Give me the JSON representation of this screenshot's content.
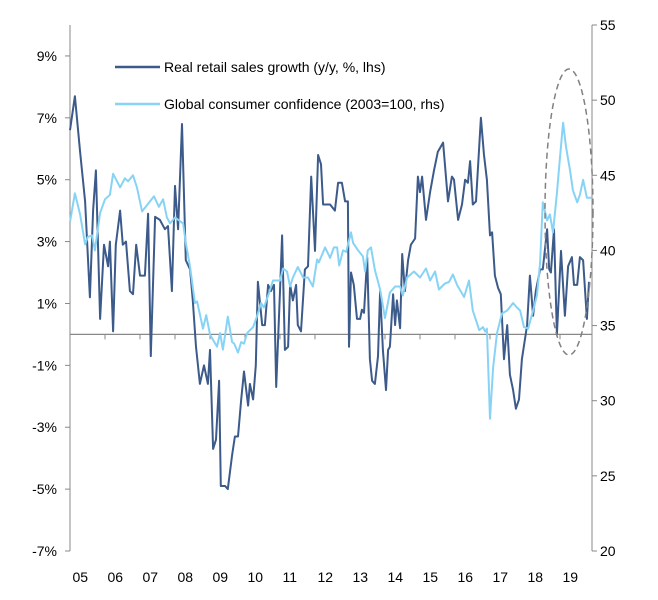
{
  "chart_data": {
    "type": "line",
    "title": "",
    "xlabel": "",
    "x_tick_labels": [
      "05",
      "06",
      "07",
      "08",
      "09",
      "10",
      "11",
      "12",
      "13",
      "14",
      "15",
      "16",
      "17",
      "18",
      "19"
    ],
    "xlim": [
      2005,
      2020
    ],
    "y_left": {
      "label": "",
      "lim": [
        -7,
        10
      ],
      "ticks": [
        -7,
        -5,
        -3,
        -1,
        1,
        3,
        5,
        7,
        9
      ],
      "tick_labels": [
        "-7%",
        "-5%",
        "-3%",
        "-1%",
        "1%",
        "3%",
        "5%",
        "7%",
        "9%"
      ]
    },
    "y_right": {
      "label": "",
      "lim": [
        20,
        55
      ],
      "ticks": [
        20,
        25,
        30,
        35,
        40,
        45,
        50,
        55
      ],
      "tick_labels": [
        "20",
        "25",
        "30",
        "35",
        "40",
        "45",
        "50",
        "55"
      ]
    },
    "grid": false,
    "zero_line": true,
    "legend_placement": "top-center",
    "annotation": "dashed ellipse around 2018-2019",
    "series": [
      {
        "name": "Real retail sales growth (y/y, %, lhs)",
        "axis": "left",
        "color": "#3C5A8A",
        "points": [
          [
            2005.0,
            6.6
          ],
          [
            2005.14,
            7.7
          ],
          [
            2005.29,
            5.9
          ],
          [
            2005.43,
            4.3
          ],
          [
            2005.57,
            1.2
          ],
          [
            2005.66,
            4.0
          ],
          [
            2005.74,
            5.3
          ],
          [
            2005.86,
            0.5
          ],
          [
            2005.97,
            2.9
          ],
          [
            2006.09,
            2.2
          ],
          [
            2006.14,
            3.0
          ],
          [
            2006.23,
            0.1
          ],
          [
            2006.31,
            2.9
          ],
          [
            2006.43,
            4.0
          ],
          [
            2006.51,
            2.9
          ],
          [
            2006.6,
            3.0
          ],
          [
            2006.71,
            1.4
          ],
          [
            2006.8,
            1.3
          ],
          [
            2006.89,
            2.9
          ],
          [
            2007.0,
            1.9
          ],
          [
            2007.14,
            1.9
          ],
          [
            2007.23,
            3.9
          ],
          [
            2007.31,
            -0.7
          ],
          [
            2007.43,
            3.8
          ],
          [
            2007.57,
            3.7
          ],
          [
            2007.71,
            3.4
          ],
          [
            2007.8,
            3.5
          ],
          [
            2007.91,
            1.4
          ],
          [
            2008.0,
            4.8
          ],
          [
            2008.09,
            3.4
          ],
          [
            2008.2,
            6.8
          ],
          [
            2008.31,
            2.4
          ],
          [
            2008.43,
            2.1
          ],
          [
            2008.51,
            1.1
          ],
          [
            2008.6,
            -0.4
          ],
          [
            2008.71,
            -1.6
          ],
          [
            2008.83,
            -1.0
          ],
          [
            2008.94,
            -1.6
          ],
          [
            2009.0,
            -0.5
          ],
          [
            2009.09,
            -3.7
          ],
          [
            2009.17,
            -3.4
          ],
          [
            2009.26,
            -1.5
          ],
          [
            2009.31,
            -4.9
          ],
          [
            2009.43,
            -4.9
          ],
          [
            2009.51,
            -5.0
          ],
          [
            2009.63,
            -3.9
          ],
          [
            2009.71,
            -3.3
          ],
          [
            2009.8,
            -3.3
          ],
          [
            2009.89,
            -2.1
          ],
          [
            2009.97,
            -1.2
          ],
          [
            2010.09,
            -2.3
          ],
          [
            2010.14,
            -1.6
          ],
          [
            2010.23,
            -2.1
          ],
          [
            2010.31,
            -1.0
          ],
          [
            2010.37,
            1.7
          ],
          [
            2010.49,
            0.3
          ],
          [
            2010.57,
            0.3
          ],
          [
            2010.66,
            1.6
          ],
          [
            2010.74,
            1.4
          ],
          [
            2010.83,
            1.6
          ],
          [
            2010.89,
            -1.7
          ],
          [
            2011.0,
            1.4
          ],
          [
            2011.06,
            3.2
          ],
          [
            2011.14,
            -0.5
          ],
          [
            2011.23,
            -0.4
          ],
          [
            2011.29,
            1.6
          ],
          [
            2011.37,
            1.1
          ],
          [
            2011.46,
            1.6
          ],
          [
            2011.51,
            0.3
          ],
          [
            2011.6,
            0.1
          ],
          [
            2011.71,
            2.1
          ],
          [
            2011.8,
            2.2
          ],
          [
            2011.89,
            5.1
          ],
          [
            2012.0,
            2.7
          ],
          [
            2012.09,
            5.8
          ],
          [
            2012.17,
            5.5
          ],
          [
            2012.23,
            4.2
          ],
          [
            2012.43,
            4.2
          ],
          [
            2012.57,
            4.0
          ],
          [
            2012.66,
            4.9
          ],
          [
            2012.77,
            4.9
          ],
          [
            2012.86,
            4.3
          ],
          [
            2012.94,
            4.3
          ],
          [
            2012.97,
            -0.4
          ],
          [
            2013.03,
            2.0
          ],
          [
            2013.11,
            1.6
          ],
          [
            2013.2,
            0.5
          ],
          [
            2013.29,
            0.5
          ],
          [
            2013.34,
            0.8
          ],
          [
            2013.4,
            0.7
          ],
          [
            2013.49,
            2.5
          ],
          [
            2013.57,
            -0.8
          ],
          [
            2013.63,
            -1.5
          ],
          [
            2013.71,
            -1.6
          ],
          [
            2013.8,
            -0.7
          ],
          [
            2013.86,
            1.4
          ],
          [
            2013.94,
            -0.5
          ],
          [
            2014.03,
            -1.8
          ],
          [
            2014.09,
            -0.5
          ],
          [
            2014.14,
            -0.4
          ],
          [
            2014.23,
            1.3
          ],
          [
            2014.29,
            0.3
          ],
          [
            2014.34,
            1.1
          ],
          [
            2014.43,
            0.2
          ],
          [
            2014.49,
            2.6
          ],
          [
            2014.57,
            1.4
          ],
          [
            2014.66,
            2.4
          ],
          [
            2014.74,
            2.9
          ],
          [
            2014.86,
            3.1
          ],
          [
            2014.94,
            5.1
          ],
          [
            2015.0,
            4.6
          ],
          [
            2015.06,
            5.1
          ],
          [
            2015.17,
            3.7
          ],
          [
            2015.29,
            4.6
          ],
          [
            2015.4,
            5.3
          ],
          [
            2015.51,
            5.9
          ],
          [
            2015.66,
            6.2
          ],
          [
            2015.8,
            4.3
          ],
          [
            2015.91,
            5.1
          ],
          [
            2015.97,
            5.0
          ],
          [
            2016.09,
            3.7
          ],
          [
            2016.2,
            4.2
          ],
          [
            2016.29,
            5.0
          ],
          [
            2016.37,
            4.9
          ],
          [
            2016.43,
            5.6
          ],
          [
            2016.51,
            4.2
          ],
          [
            2016.6,
            4.3
          ],
          [
            2016.74,
            7.0
          ],
          [
            2016.83,
            5.8
          ],
          [
            2016.91,
            5.0
          ],
          [
            2017.0,
            3.2
          ],
          [
            2017.06,
            3.3
          ],
          [
            2017.14,
            1.9
          ],
          [
            2017.23,
            1.5
          ],
          [
            2017.31,
            1.3
          ],
          [
            2017.4,
            -0.8
          ],
          [
            2017.49,
            0.3
          ],
          [
            2017.57,
            -1.3
          ],
          [
            2017.66,
            -1.8
          ],
          [
            2017.74,
            -2.4
          ],
          [
            2017.83,
            -2.1
          ],
          [
            2017.91,
            -0.8
          ],
          [
            2018.06,
            0.3
          ],
          [
            2018.14,
            1.9
          ],
          [
            2018.23,
            0.6
          ],
          [
            2018.31,
            1.4
          ],
          [
            2018.43,
            2.1
          ],
          [
            2018.51,
            2.1
          ],
          [
            2018.63,
            3.4
          ],
          [
            2018.69,
            2.1
          ],
          [
            2018.74,
            2.0
          ],
          [
            2018.83,
            3.4
          ],
          [
            2018.91,
            0.0
          ],
          [
            2019.03,
            2.7
          ],
          [
            2019.14,
            0.6
          ],
          [
            2019.23,
            2.2
          ],
          [
            2019.34,
            2.5
          ],
          [
            2019.4,
            1.6
          ],
          [
            2019.49,
            1.6
          ],
          [
            2019.57,
            2.5
          ],
          [
            2019.66,
            2.4
          ],
          [
            2019.77,
            0.5
          ],
          [
            2019.83,
            1.7
          ]
        ]
      },
      {
        "name": "Global consumer confidence (2003=100, rhs)",
        "axis": "right",
        "color": "#87D3F5",
        "points": [
          [
            2005.0,
            41.9
          ],
          [
            2005.14,
            43.8
          ],
          [
            2005.29,
            42.4
          ],
          [
            2005.43,
            40.4
          ],
          [
            2005.51,
            40.9
          ],
          [
            2005.63,
            41.0
          ],
          [
            2005.71,
            40.0
          ],
          [
            2005.86,
            42.5
          ],
          [
            2006.0,
            43.4
          ],
          [
            2006.14,
            43.7
          ],
          [
            2006.23,
            45.1
          ],
          [
            2006.43,
            44.2
          ],
          [
            2006.57,
            44.8
          ],
          [
            2006.66,
            44.6
          ],
          [
            2006.8,
            45.0
          ],
          [
            2006.91,
            44.2
          ],
          [
            2007.06,
            42.6
          ],
          [
            2007.4,
            43.6
          ],
          [
            2007.54,
            42.9
          ],
          [
            2007.66,
            43.4
          ],
          [
            2007.77,
            42.2
          ],
          [
            2007.86,
            41.8
          ],
          [
            2008.0,
            42.2
          ],
          [
            2008.23,
            41.8
          ],
          [
            2008.31,
            40.5
          ],
          [
            2008.43,
            38.9
          ],
          [
            2008.57,
            36.5
          ],
          [
            2008.63,
            36.6
          ],
          [
            2008.8,
            34.8
          ],
          [
            2008.89,
            35.7
          ],
          [
            2009.0,
            34.4
          ],
          [
            2009.2,
            33.6
          ],
          [
            2009.29,
            34.5
          ],
          [
            2009.37,
            33.4
          ],
          [
            2009.51,
            35.6
          ],
          [
            2009.63,
            33.9
          ],
          [
            2009.69,
            33.8
          ],
          [
            2009.8,
            33.2
          ],
          [
            2009.89,
            33.9
          ],
          [
            2009.97,
            33.8
          ],
          [
            2010.06,
            34.5
          ],
          [
            2010.23,
            34.9
          ],
          [
            2010.34,
            35.6
          ],
          [
            2010.46,
            36.5
          ],
          [
            2010.54,
            36.2
          ],
          [
            2010.69,
            37.2
          ],
          [
            2010.8,
            38.0
          ],
          [
            2011.0,
            38.0
          ],
          [
            2011.09,
            38.8
          ],
          [
            2011.2,
            38.6
          ],
          [
            2011.29,
            37.6
          ],
          [
            2011.37,
            38.2
          ],
          [
            2011.51,
            38.9
          ],
          [
            2011.66,
            38.2
          ],
          [
            2011.8,
            38.2
          ],
          [
            2011.94,
            37.6
          ],
          [
            2012.06,
            39.4
          ],
          [
            2012.11,
            39.2
          ],
          [
            2012.29,
            40.2
          ],
          [
            2012.43,
            39.5
          ],
          [
            2012.54,
            40.2
          ],
          [
            2012.63,
            40.2
          ],
          [
            2012.69,
            39.0
          ],
          [
            2012.8,
            40.0
          ],
          [
            2012.89,
            39.9
          ],
          [
            2013.03,
            41.2
          ],
          [
            2013.09,
            40.5
          ],
          [
            2013.23,
            40.0
          ],
          [
            2013.37,
            39.6
          ],
          [
            2013.43,
            38.6
          ],
          [
            2013.51,
            40.0
          ],
          [
            2013.6,
            40.2
          ],
          [
            2013.71,
            38.7
          ],
          [
            2013.86,
            37.4
          ],
          [
            2014.0,
            35.5
          ],
          [
            2014.14,
            37.2
          ],
          [
            2014.29,
            37.6
          ],
          [
            2014.43,
            37.6
          ],
          [
            2014.51,
            37.0
          ],
          [
            2014.63,
            38.2
          ],
          [
            2014.83,
            38.6
          ],
          [
            2015.0,
            38.2
          ],
          [
            2015.17,
            38.8
          ],
          [
            2015.29,
            38.0
          ],
          [
            2015.43,
            38.6
          ],
          [
            2015.54,
            37.4
          ],
          [
            2015.71,
            37.8
          ],
          [
            2015.83,
            37.9
          ],
          [
            2015.94,
            38.4
          ],
          [
            2016.06,
            37.7
          ],
          [
            2016.26,
            36.9
          ],
          [
            2016.4,
            38.0
          ],
          [
            2016.51,
            36.0
          ],
          [
            2016.69,
            34.7
          ],
          [
            2016.8,
            34.9
          ],
          [
            2016.86,
            34.6
          ],
          [
            2016.91,
            34.8
          ],
          [
            2017.0,
            28.8
          ],
          [
            2017.09,
            32.2
          ],
          [
            2017.2,
            34.5
          ],
          [
            2017.34,
            35.8
          ],
          [
            2017.49,
            36.0
          ],
          [
            2017.66,
            36.5
          ],
          [
            2017.77,
            36.2
          ],
          [
            2017.86,
            36.0
          ],
          [
            2017.97,
            34.9
          ],
          [
            2018.09,
            34.8
          ],
          [
            2018.23,
            36.0
          ],
          [
            2018.34,
            37.0
          ],
          [
            2018.43,
            39.2
          ],
          [
            2018.51,
            43.2
          ],
          [
            2018.63,
            42.0
          ],
          [
            2018.71,
            42.4
          ],
          [
            2018.8,
            41.2
          ],
          [
            2018.91,
            43.8
          ],
          [
            2019.0,
            46.2
          ],
          [
            2019.09,
            48.5
          ],
          [
            2019.17,
            46.9
          ],
          [
            2019.29,
            45.3
          ],
          [
            2019.37,
            44.0
          ],
          [
            2019.49,
            43.2
          ],
          [
            2019.57,
            43.7
          ],
          [
            2019.66,
            44.7
          ],
          [
            2019.77,
            43.5
          ],
          [
            2019.91,
            43.5
          ]
        ]
      }
    ]
  },
  "colors": {
    "axis": "#888888",
    "annotation": "#808080"
  }
}
